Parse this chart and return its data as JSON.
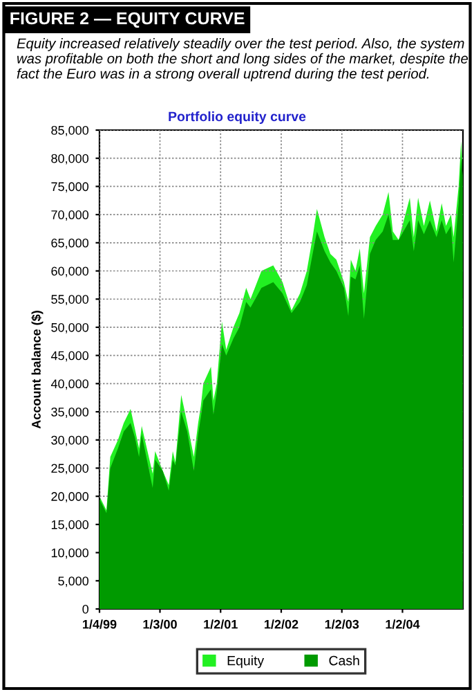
{
  "chart_data": {
    "type": "area",
    "title": "FIGURE 2 — EQUITY CURVE",
    "subtitle": "Equity increased relatively steadily over the test period. Also, the system was profitable on both the short and long sides of the market, despite the fact the Euro was in a strong overall uptrend during the test period.",
    "annotations": [
      "Portfolio equity curve"
    ],
    "ylabel": "Account balance ($)",
    "x": [
      "1999-01-04",
      "1999-02-15",
      "1999-03-10",
      "1999-04-25",
      "1999-05-30",
      "1999-07-10",
      "1999-08-05",
      "1999-08-30",
      "1999-09-15",
      "1999-11-20",
      "1999-12-05",
      "2000-01-20",
      "2000-02-25",
      "2000-03-20",
      "2000-04-05",
      "2000-05-10",
      "2000-06-15",
      "2000-07-25",
      "2000-08-20",
      "2000-09-05",
      "2000-09-20",
      "2000-11-05",
      "2000-11-20",
      "2000-12-10",
      "2001-01-10",
      "2001-02-05",
      "2001-03-20",
      "2001-04-25",
      "2001-06-05",
      "2001-07-01",
      "2001-09-05",
      "2001-11-15",
      "2002-01-10",
      "2002-03-05",
      "2002-04-25",
      "2002-06-05",
      "2002-07-10",
      "2002-08-05",
      "2002-09-20",
      "2002-10-25",
      "2002-11-30",
      "2003-01-15",
      "2003-02-10",
      "2003-02-25",
      "2003-03-25",
      "2003-04-20",
      "2003-05-15",
      "2003-06-20",
      "2003-07-25",
      "2003-09-05",
      "2003-10-10",
      "2003-11-05",
      "2003-12-10",
      "2004-02-15",
      "2004-03-10",
      "2004-04-05",
      "2004-05-10",
      "2004-06-15",
      "2004-07-25",
      "2004-08-25",
      "2004-09-20",
      "2004-10-20",
      "2004-11-05",
      "2004-12-05",
      "2004-12-20",
      "2004-12-30"
    ],
    "series": [
      {
        "name": "Equity",
        "color": "#22f022",
        "values": [
          20000,
          17500,
          27000,
          30000,
          33000,
          35500,
          32000,
          28500,
          32500,
          24000,
          28000,
          24500,
          22000,
          28000,
          26000,
          38000,
          33000,
          27000,
          33000,
          36000,
          40000,
          43000,
          37000,
          40000,
          51000,
          46000,
          50000,
          52500,
          57000,
          55000,
          60000,
          61000,
          58000,
          53000,
          56000,
          60000,
          66000,
          71000,
          66000,
          63000,
          62000,
          58000,
          54500,
          62000,
          60000,
          64000,
          56000,
          66000,
          68000,
          70000,
          74000,
          67000,
          65500,
          73000,
          66000,
          73000,
          68000,
          72500,
          67000,
          72000,
          68000,
          70000,
          66000,
          75000,
          83000,
          78000
        ]
      },
      {
        "name": "Cash",
        "color": "#009a00",
        "values": [
          19500,
          17000,
          25000,
          28500,
          31500,
          33000,
          30500,
          27000,
          31000,
          21500,
          26500,
          24500,
          21000,
          26500,
          25500,
          35000,
          31500,
          24500,
          31000,
          34000,
          37000,
          39000,
          34500,
          38500,
          47000,
          45000,
          48000,
          50000,
          54500,
          53500,
          57000,
          58000,
          56000,
          52500,
          54500,
          57500,
          63000,
          67000,
          63500,
          61500,
          60000,
          57000,
          52000,
          59000,
          58500,
          61000,
          51500,
          63000,
          65500,
          67000,
          70000,
          65500,
          65500,
          69000,
          63500,
          69000,
          66500,
          69000,
          66000,
          69000,
          66500,
          68000,
          61500,
          72000,
          80000,
          77000
        ]
      }
    ],
    "xlim": [
      "1999-01-04",
      "2004-12-31"
    ],
    "xticks": [
      {
        "value": "1999-01-04",
        "label": "1/4/99"
      },
      {
        "value": "2000-01-03",
        "label": "1/3/00"
      },
      {
        "value": "2001-01-02",
        "label": "1/2/01"
      },
      {
        "value": "2002-01-02",
        "label": "1/2/02"
      },
      {
        "value": "2003-01-02",
        "label": "1/2/03"
      },
      {
        "value": "2004-01-02",
        "label": "1/2/04"
      }
    ],
    "ylim": [
      0,
      85000
    ],
    "yticks": [
      0,
      {
        "value": 5000,
        "label": "5,000"
      },
      {
        "value": 10000,
        "label": "10,000"
      },
      {
        "value": 15000,
        "label": "15,000"
      },
      {
        "value": 20000,
        "label": "20,000"
      },
      {
        "value": 25000,
        "label": "25,000"
      },
      {
        "value": 30000,
        "label": "30,000"
      },
      {
        "value": 35000,
        "label": "35,000"
      },
      {
        "value": 40000,
        "label": "40,000"
      },
      {
        "value": 45000,
        "label": "45,000"
      },
      {
        "value": 50000,
        "label": "50,000"
      },
      {
        "value": 55000,
        "label": "55,000"
      },
      {
        "value": 60000,
        "label": "60,000"
      },
      {
        "value": 65000,
        "label": "65,000"
      },
      {
        "value": 70000,
        "label": "70,000"
      },
      {
        "value": 75000,
        "label": "75,000"
      },
      {
        "value": 80000,
        "label": "80,000"
      },
      {
        "value": 85000,
        "label": "85,000"
      }
    ],
    "grid": true,
    "legend": "bottom"
  }
}
